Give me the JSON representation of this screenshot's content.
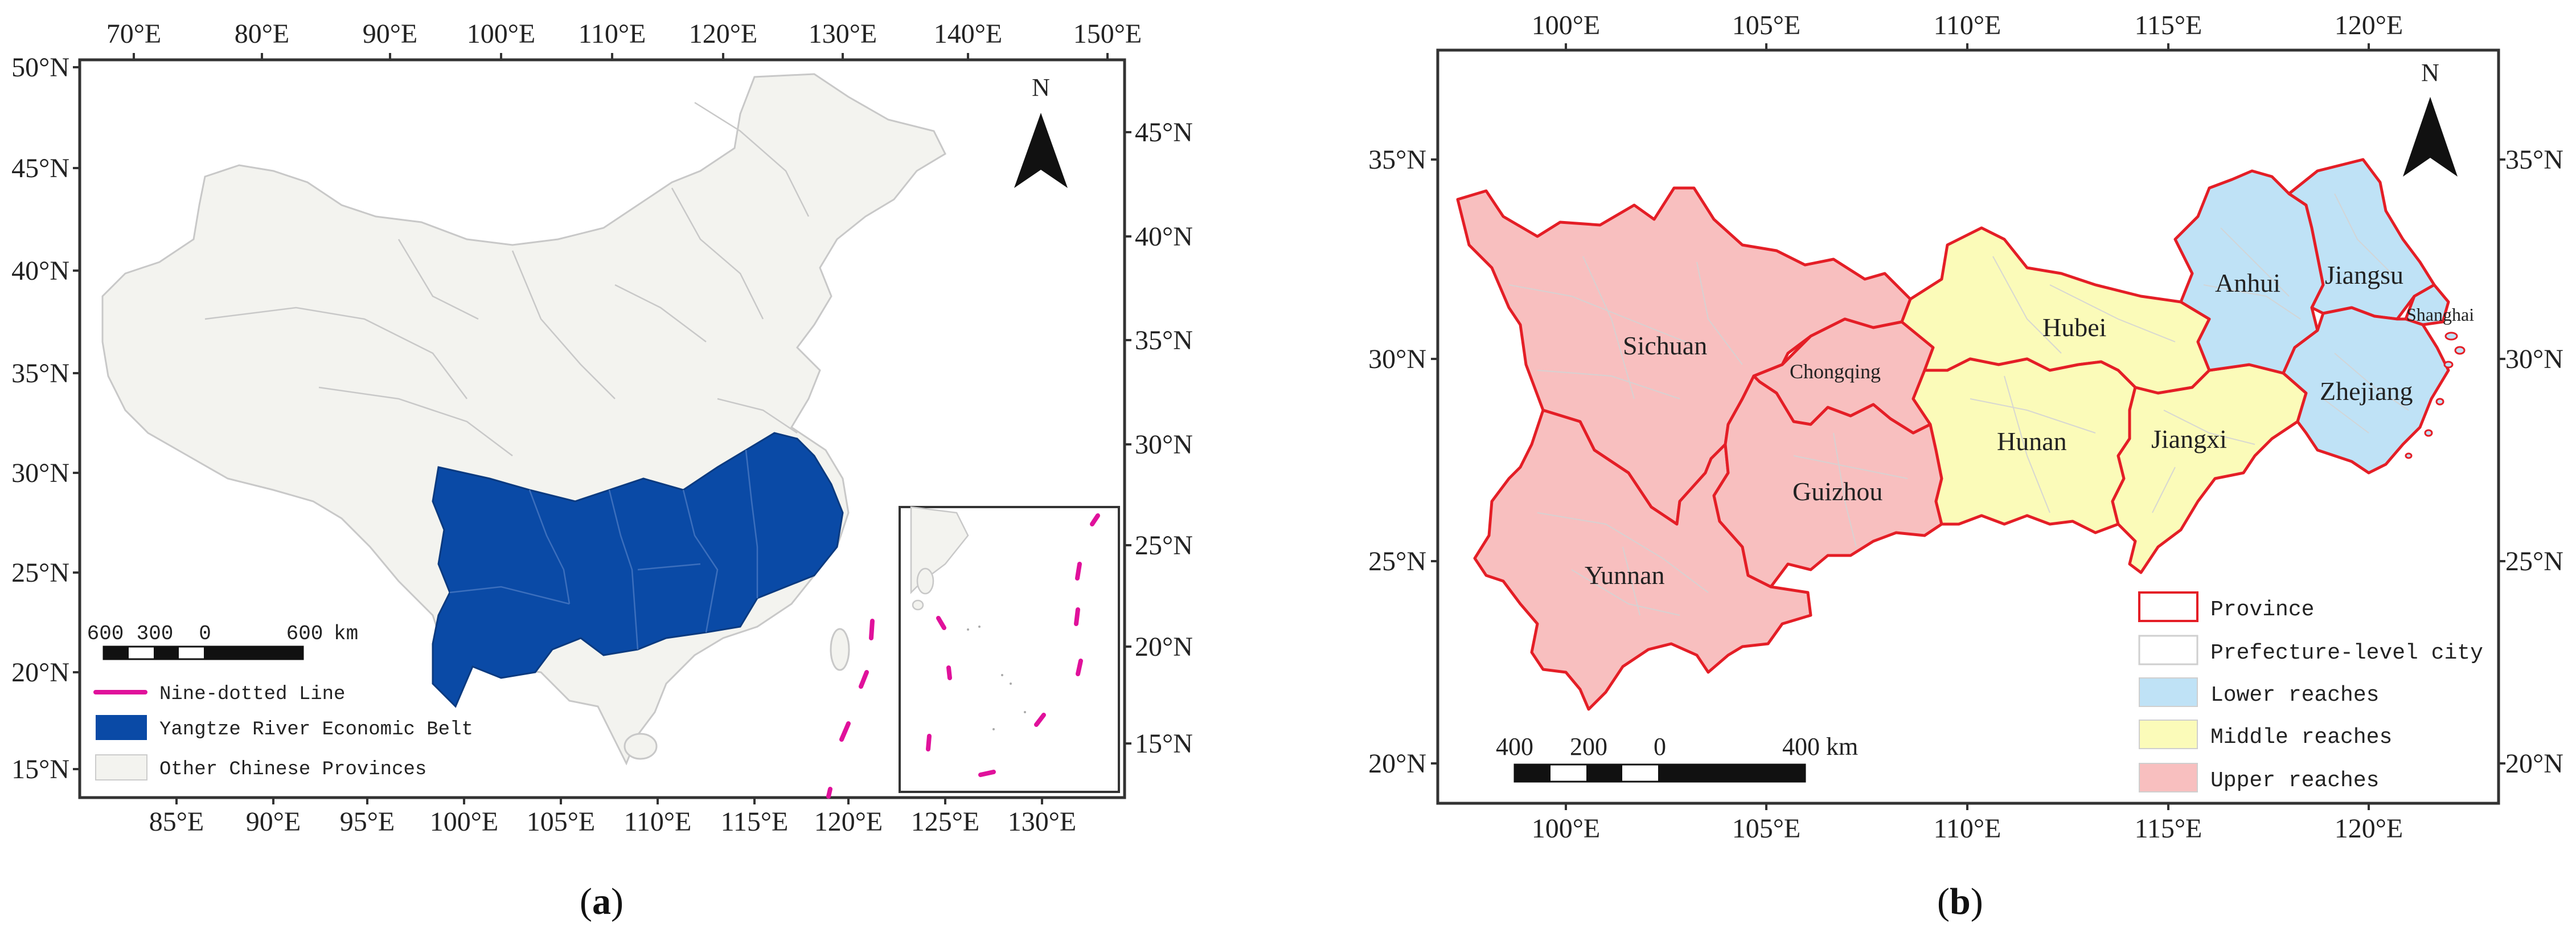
{
  "panel_a": {
    "caption": {
      "open": "(",
      "letter": "a",
      "close": ")"
    },
    "top_lon_ticks": [
      "70°E",
      "80°E",
      "90°E",
      "100°E",
      "110°E",
      "120°E",
      "130°E",
      "140°E",
      "150°E"
    ],
    "bottom_lon_ticks": [
      "85°E",
      "90°E",
      "95°E",
      "100°E",
      "105°E",
      "110°E",
      "115°E",
      "120°E",
      "125°E",
      "130°E"
    ],
    "left_lat_ticks": [
      "50°N",
      "45°N",
      "40°N",
      "35°N",
      "30°N",
      "25°N",
      "20°N",
      "15°N"
    ],
    "right_lat_ticks": [
      "45°N",
      "40°N",
      "35°N",
      "30°N",
      "25°N",
      "20°N",
      "15°N"
    ],
    "north_label": "N",
    "scale_labels": [
      "600",
      "300",
      "0",
      "600",
      "km"
    ],
    "legend": [
      {
        "label": "Nine-dotted Line",
        "color": "#e0119b",
        "kind": "line"
      },
      {
        "label": "Yangtze River Economic Belt",
        "color": "#0a4aa6",
        "kind": "fill"
      },
      {
        "label": "Other Chinese Provinces",
        "color": "#f3f3ef",
        "kind": "fill"
      }
    ]
  },
  "panel_b": {
    "caption": {
      "open": "(",
      "letter": "b",
      "close": ")"
    },
    "top_lon_ticks": [
      "100°E",
      "105°E",
      "110°E",
      "115°E",
      "120°E"
    ],
    "bottom_lon_ticks": [
      "100°E",
      "105°E",
      "110°E",
      "115°E",
      "120°E"
    ],
    "left_lat_ticks": [
      "35°N",
      "30°N",
      "25°N",
      "20°N"
    ],
    "right_lat_ticks": [
      "35°N",
      "30°N",
      "25°N",
      "20°N"
    ],
    "north_label": "N",
    "scale_labels": [
      "400",
      "200",
      "0",
      "400 km"
    ],
    "provinces": [
      "Sichuan",
      "Chongqing",
      "Yunnan",
      "Guizhou",
      "Hubei",
      "Hunan",
      "Jiangxi",
      "Anhui",
      "Jiangsu",
      "Shanghai",
      "Zhejiang"
    ],
    "legend": [
      {
        "label": "Province",
        "color": "#e41e26",
        "kind": "outline"
      },
      {
        "label": "Prefecture-level city",
        "color": "#cfcfcf",
        "kind": "outline"
      },
      {
        "label": "Lower reaches",
        "color": "#bfe2f6",
        "kind": "fill"
      },
      {
        "label": "Middle reaches",
        "color": "#fbfbb9",
        "kind": "fill"
      },
      {
        "label": "Upper reaches",
        "color": "#f8bfbf",
        "kind": "fill"
      }
    ]
  },
  "colors": {
    "ryeb": "#0a4aa6",
    "other_provinces": "#f3f3ef",
    "nine_dash": "#e0119b",
    "province_border": "#e41e26",
    "lower": "#bfe2f6",
    "middle": "#fbfbb9",
    "upper": "#f8bfbf"
  }
}
